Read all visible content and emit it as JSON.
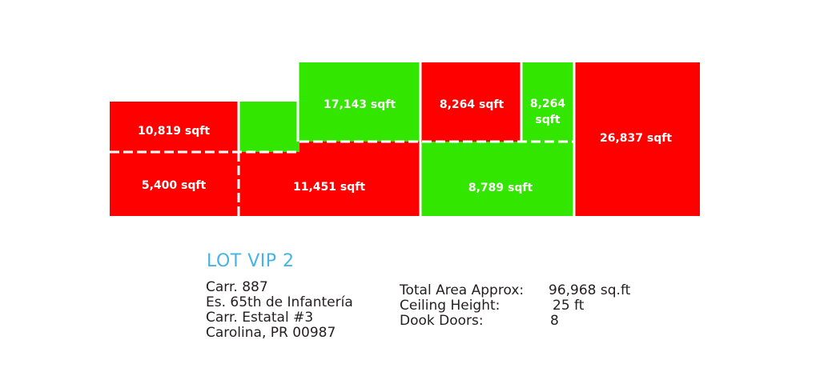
{
  "colors": {
    "leased": "#ff0000",
    "available": "#33e600",
    "title": "#45b4e3",
    "text": "#231f20"
  },
  "units": [
    {
      "id": "u1",
      "label": "10,819 sqft",
      "status": "leased"
    },
    {
      "id": "u2",
      "label": "5,400 sqft",
      "status": "leased"
    },
    {
      "id": "u3",
      "label": "",
      "status": "available"
    },
    {
      "id": "u4",
      "label": "17,143 sqft",
      "status": "available"
    },
    {
      "id": "u5",
      "label": "11,451 sqft",
      "status": "leased"
    },
    {
      "id": "u6",
      "label": "8,264 sqft",
      "status": "leased"
    },
    {
      "id": "u7",
      "label": [
        "8,264",
        "sqft"
      ],
      "status": "available"
    },
    {
      "id": "u8",
      "label": "8,789 sqft",
      "status": "available"
    },
    {
      "id": "u9",
      "label": "26,837 sqft",
      "status": "leased"
    }
  ],
  "lot": {
    "title": "LOT VIP 2",
    "address": [
      "Carr. 887",
      "Es. 65th de Infantería",
      "Carr. Estatal #3",
      "Carolina, PR 00987"
    ],
    "specs": [
      {
        "label": "Total Area Approx:",
        "value": "96,968 sq.ft"
      },
      {
        "label": "Ceiling Height:",
        "value": "25 ft"
      },
      {
        "label": "Dook Doors:",
        "value": "8"
      }
    ]
  }
}
